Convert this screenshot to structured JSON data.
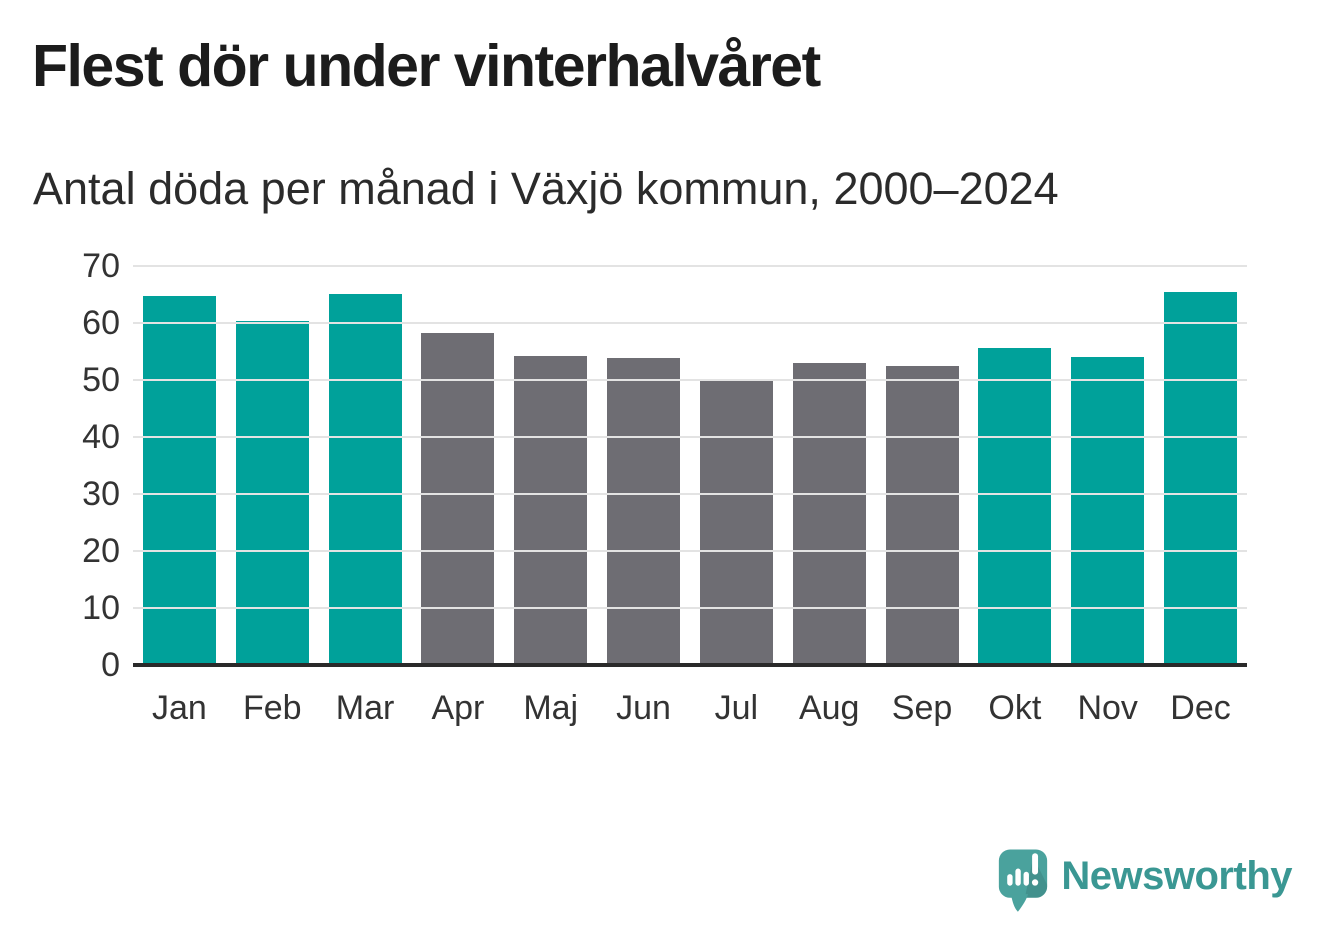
{
  "header": {
    "title": "Flest dör under vinterhalvåret",
    "subtitle": "Antal döda per månad i Växjö kommun, 2000–2024"
  },
  "chart_data": {
    "type": "bar",
    "title": "Flest dör under vinterhalvåret",
    "subtitle": "Antal döda per månad i Växjö kommun, 2000–2024",
    "categories": [
      "Jan",
      "Feb",
      "Mar",
      "Apr",
      "Maj",
      "Jun",
      "Jul",
      "Aug",
      "Sep",
      "Okt",
      "Nov",
      "Dec"
    ],
    "values": [
      64.8,
      60.4,
      65.1,
      58.2,
      54.3,
      53.8,
      50.0,
      52.9,
      52.4,
      55.7,
      54.1,
      65.4
    ],
    "bar_groups": [
      "winter",
      "winter",
      "winter",
      "summer",
      "summer",
      "summer",
      "summer",
      "summer",
      "summer",
      "winter",
      "winter",
      "winter"
    ],
    "group_colors": {
      "winter": "#00a19a",
      "summer": "#6e6d73"
    },
    "xlabel": "",
    "ylabel": "",
    "ylim": [
      0,
      70
    ],
    "yticks": [
      0,
      10,
      20,
      30,
      40,
      50,
      60,
      70
    ],
    "grid": "horizontal",
    "legend_position": "none"
  },
  "branding": {
    "logo_text": "Newsworthy",
    "logo_icon": "speech-bubble-bar-chart-icon",
    "logo_text_color": "#3a9793",
    "logo_bubble_color": "#4aa29d"
  },
  "style": {
    "background": "#ffffff",
    "title_color": "#1c1c1c",
    "subtitle_color": "#2b2b2b",
    "axis_label_color": "#333333",
    "gridline_color": "#e3e3e3",
    "axis_line_color": "#2a2a2a"
  }
}
